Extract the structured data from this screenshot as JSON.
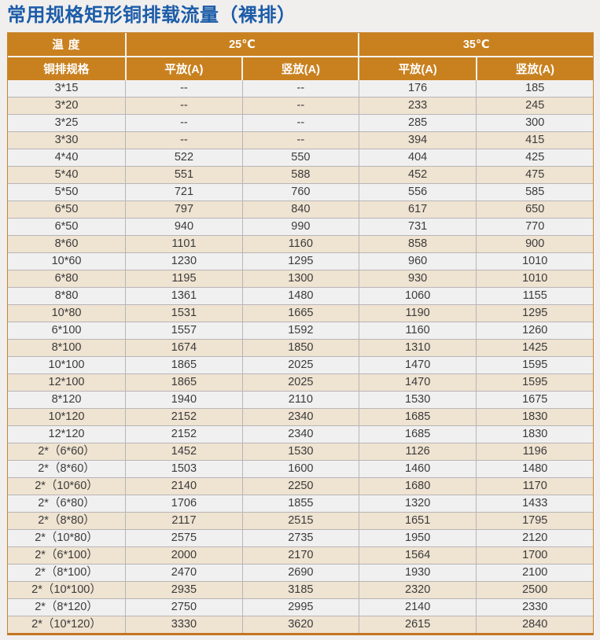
{
  "page_title": "常用规格矩形铜排载流量（裸排）",
  "colors": {
    "title_blue": "#1c5ca8",
    "header_orange": "#c9811f",
    "stripe_gray": "#f1f0f0",
    "stripe_beige": "#efe3d1",
    "grid_border": "#b7b5b7",
    "table_border": "#c8842f"
  },
  "table": {
    "header_row1": {
      "temperature_label": "温 度",
      "temp_25": "25℃",
      "temp_35": "35℃"
    },
    "header_row2": {
      "spec_label": "铜排规格",
      "flat_25": "平放(A)",
      "vertical_25": "竖放(A)",
      "flat_35": "平放(A)",
      "vertical_35": "竖放(A)"
    },
    "rows": [
      [
        "3*15",
        "--",
        "--",
        "176",
        "185"
      ],
      [
        "3*20",
        "--",
        "--",
        "233",
        "245"
      ],
      [
        "3*25",
        "--",
        "--",
        "285",
        "300"
      ],
      [
        "3*30",
        "--",
        "--",
        "394",
        "415"
      ],
      [
        "4*40",
        "522",
        "550",
        "404",
        "425"
      ],
      [
        "5*40",
        "551",
        "588",
        "452",
        "475"
      ],
      [
        "5*50",
        "721",
        "760",
        "556",
        "585"
      ],
      [
        "6*50",
        "797",
        "840",
        "617",
        "650"
      ],
      [
        "6*50",
        "940",
        "990",
        "731",
        "770"
      ],
      [
        "8*60",
        "1101",
        "1160",
        "858",
        "900"
      ],
      [
        "10*60",
        "1230",
        "1295",
        "960",
        "1010"
      ],
      [
        "6*80",
        "1195",
        "1300",
        "930",
        "1010"
      ],
      [
        "8*80",
        "1361",
        "1480",
        "1060",
        "1155"
      ],
      [
        "10*80",
        "1531",
        "1665",
        "1190",
        "1295"
      ],
      [
        "6*100",
        "1557",
        "1592",
        "1160",
        "1260"
      ],
      [
        "8*100",
        "1674",
        "1850",
        "1310",
        "1425"
      ],
      [
        "10*100",
        "1865",
        "2025",
        "1470",
        "1595"
      ],
      [
        "12*100",
        "1865",
        "2025",
        "1470",
        "1595"
      ],
      [
        "8*120",
        "1940",
        "2110",
        "1530",
        "1675"
      ],
      [
        "10*120",
        "2152",
        "2340",
        "1685",
        "1830"
      ],
      [
        "12*120",
        "2152",
        "2340",
        "1685",
        "1830"
      ],
      [
        "2*（6*60）",
        "1452",
        "1530",
        "1126",
        "1196"
      ],
      [
        "2*（8*60）",
        "1503",
        "1600",
        "1460",
        "1480"
      ],
      [
        "2*（10*60）",
        "2140",
        "2250",
        "1680",
        "1170"
      ],
      [
        "2*（6*80）",
        "1706",
        "1855",
        "1320",
        "1433"
      ],
      [
        "2*（8*80）",
        "2117",
        "2515",
        "1651",
        "1795"
      ],
      [
        "2*（10*80）",
        "2575",
        "2735",
        "1950",
        "2120"
      ],
      [
        "2*（6*100）",
        "2000",
        "2170",
        "1564",
        "1700"
      ],
      [
        "2*（8*100）",
        "2470",
        "2690",
        "1930",
        "2100"
      ],
      [
        "2*（10*100）",
        "2935",
        "3185",
        "2320",
        "2500"
      ],
      [
        "2*（8*120）",
        "2750",
        "2995",
        "2140",
        "2330"
      ],
      [
        "2*（10*120）",
        "3330",
        "3620",
        "2615",
        "2840"
      ]
    ]
  }
}
